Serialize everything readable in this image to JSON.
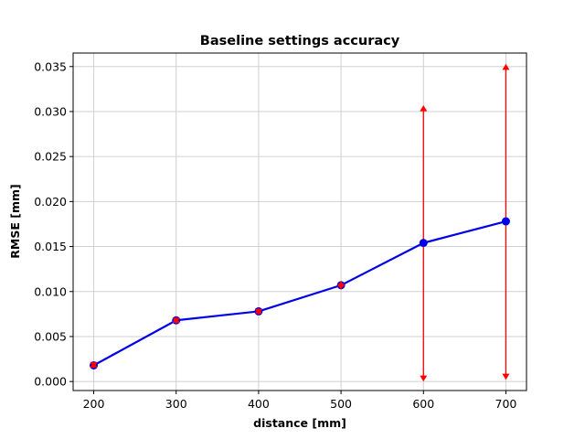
{
  "chart_data": {
    "type": "line",
    "title": "Baseline settings accuracy",
    "xlabel": "distance [mm]",
    "ylabel": "RMSE [mm]",
    "xlim": [
      175,
      725
    ],
    "ylim": [
      -0.001,
      0.0365
    ],
    "xticks": [
      {
        "value": 200,
        "label": "200"
      },
      {
        "value": 300,
        "label": "300"
      },
      {
        "value": 400,
        "label": "400"
      },
      {
        "value": 500,
        "label": "500"
      },
      {
        "value": 600,
        "label": "600"
      },
      {
        "value": 700,
        "label": "700"
      }
    ],
    "yticks": [
      {
        "value": 0.0,
        "label": "0.000"
      },
      {
        "value": 0.005,
        "label": "0.005"
      },
      {
        "value": 0.01,
        "label": "0.010"
      },
      {
        "value": 0.015,
        "label": "0.015"
      },
      {
        "value": 0.02,
        "label": "0.020"
      },
      {
        "value": 0.025,
        "label": "0.025"
      },
      {
        "value": 0.03,
        "label": "0.030"
      },
      {
        "value": 0.035,
        "label": "0.035"
      }
    ],
    "grid": true,
    "series": [
      {
        "x": [
          200,
          300,
          400,
          500,
          600,
          700
        ],
        "y": [
          0.0018,
          0.0068,
          0.0078,
          0.0107,
          0.0154,
          0.0178
        ],
        "y_lower": [
          0.0016,
          0.0065,
          0.0075,
          0.0103,
          0.0001,
          0.0003
        ],
        "y_upper": [
          0.0021,
          0.0071,
          0.0081,
          0.0111,
          0.0306,
          0.0352
        ],
        "color": "#0000e6",
        "error_color": "#ff0000"
      }
    ]
  }
}
